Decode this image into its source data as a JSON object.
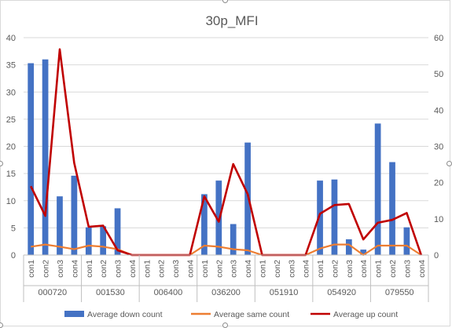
{
  "chart_data": {
    "type": "bar",
    "title": "30p_MFI",
    "groups": [
      {
        "name": "000720",
        "categories": [
          "con1",
          "con2",
          "con3",
          "con4"
        ]
      },
      {
        "name": "001530",
        "categories": [
          "con1",
          "con2",
          "con3",
          "con4"
        ]
      },
      {
        "name": "006400",
        "categories": [
          "con1",
          "con2",
          "con3",
          "con4"
        ]
      },
      {
        "name": "036200",
        "categories": [
          "con1",
          "con2",
          "con3",
          "con4"
        ]
      },
      {
        "name": "051910",
        "categories": [
          "con1",
          "con2",
          "con3",
          "con4"
        ]
      },
      {
        "name": "054920",
        "categories": [
          "con1",
          "con2",
          "con3",
          "con4"
        ]
      },
      {
        "name": "079550",
        "categories": [
          "con1",
          "con2",
          "con3",
          "con4"
        ]
      }
    ],
    "y_left": {
      "min": 0,
      "max": 40,
      "step": 5,
      "ticks": [
        "0",
        "5",
        "10",
        "15",
        "20",
        "25",
        "30",
        "35",
        "40"
      ]
    },
    "y_right": {
      "min": 0,
      "max": 60,
      "step": 10,
      "ticks": [
        "0",
        "10",
        "20",
        "30",
        "40",
        "50",
        "60"
      ]
    },
    "grid": true,
    "legend_position": "bottom",
    "series": [
      {
        "name": "Average down count",
        "kind": "bar",
        "axis": "left",
        "color": "#4472c4",
        "values": [
          35.3,
          36.0,
          10.8,
          14.6,
          5.1,
          5.3,
          8.6,
          0,
          0,
          0,
          0,
          0,
          11.2,
          13.7,
          5.7,
          20.7,
          0,
          0,
          0,
          0,
          13.7,
          13.9,
          2.9,
          1.0,
          24.2,
          17.1,
          5.1,
          0
        ]
      },
      {
        "name": "Average same count",
        "kind": "line",
        "axis": "right",
        "color": "#ed7d31",
        "values": [
          2.3,
          2.9,
          2.3,
          1.6,
          2.6,
          2.3,
          1.6,
          0,
          0,
          0,
          0,
          0,
          2.6,
          2.3,
          1.6,
          1.3,
          0,
          0,
          0,
          0,
          1.8,
          2.9,
          2.9,
          0,
          2.6,
          2.6,
          2.6,
          0
        ]
      },
      {
        "name": "Average up count",
        "kind": "line",
        "axis": "right",
        "color": "#c00000",
        "values": [
          19.0,
          10.8,
          56.8,
          25.4,
          7.8,
          8.1,
          1.3,
          0,
          0,
          0,
          0,
          0,
          16.2,
          9.2,
          25.1,
          16.8,
          0,
          0,
          0,
          0,
          11.4,
          13.8,
          14.1,
          4.3,
          8.9,
          9.7,
          11.6,
          0
        ]
      }
    ]
  }
}
